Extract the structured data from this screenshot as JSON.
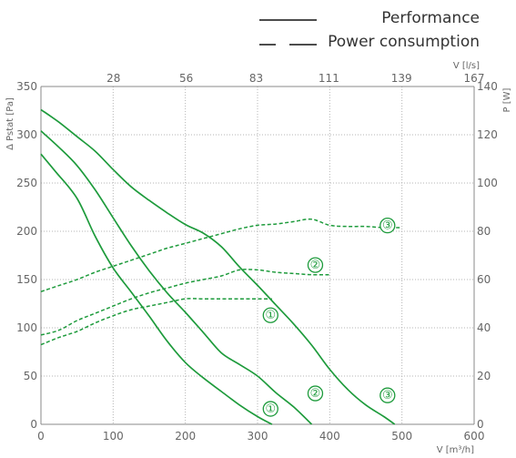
{
  "chart_data": {
    "type": "line",
    "legend": {
      "performance": "Performance",
      "power": "Power consumption"
    },
    "x_axis": {
      "label": "V [m³/h]",
      "range": [
        0,
        600
      ],
      "ticks": [
        0,
        100,
        200,
        300,
        400,
        500,
        600
      ]
    },
    "x2_axis": {
      "label": "V [l/s]",
      "range": [
        0,
        167
      ],
      "ticks": [
        28,
        56,
        83,
        111,
        139,
        167
      ]
    },
    "y_axis": {
      "label": "Δ Pstat [Pa]",
      "range": [
        0,
        350
      ],
      "ticks": [
        0,
        50,
        100,
        150,
        200,
        250,
        300,
        350
      ]
    },
    "y2_axis": {
      "label": "P [W]",
      "range": [
        0,
        140
      ],
      "ticks": [
        0,
        20,
        40,
        60,
        80,
        100,
        120,
        140
      ]
    },
    "grid": true,
    "series": [
      {
        "name": "①",
        "kind": "performance",
        "axis": "left",
        "points": [
          [
            0,
            280
          ],
          [
            20,
            262
          ],
          [
            50,
            234
          ],
          [
            75,
            195
          ],
          [
            100,
            162
          ],
          [
            125,
            137
          ],
          [
            150,
            112
          ],
          [
            175,
            86
          ],
          [
            200,
            64
          ],
          [
            225,
            48
          ],
          [
            250,
            34
          ],
          [
            275,
            20
          ],
          [
            300,
            8
          ],
          [
            320,
            0
          ]
        ]
      },
      {
        "name": "②",
        "kind": "performance",
        "axis": "left",
        "points": [
          [
            0,
            304
          ],
          [
            25,
            287
          ],
          [
            50,
            268
          ],
          [
            75,
            243
          ],
          [
            100,
            214
          ],
          [
            125,
            185
          ],
          [
            150,
            159
          ],
          [
            175,
            136
          ],
          [
            200,
            116
          ],
          [
            225,
            95
          ],
          [
            250,
            74
          ],
          [
            275,
            62
          ],
          [
            300,
            50
          ],
          [
            325,
            33
          ],
          [
            350,
            18
          ],
          [
            375,
            0
          ]
        ]
      },
      {
        "name": "③",
        "kind": "performance",
        "axis": "left",
        "points": [
          [
            0,
            326
          ],
          [
            25,
            313
          ],
          [
            50,
            298
          ],
          [
            75,
            283
          ],
          [
            100,
            264
          ],
          [
            125,
            246
          ],
          [
            150,
            232
          ],
          [
            175,
            219
          ],
          [
            200,
            207
          ],
          [
            225,
            198
          ],
          [
            250,
            184
          ],
          [
            275,
            163
          ],
          [
            300,
            144
          ],
          [
            325,
            124
          ],
          [
            350,
            104
          ],
          [
            375,
            82
          ],
          [
            400,
            57
          ],
          [
            425,
            36
          ],
          [
            450,
            20
          ],
          [
            475,
            8
          ],
          [
            490,
            0
          ]
        ]
      },
      {
        "name": "①",
        "kind": "power",
        "axis": "right",
        "points": [
          [
            0,
            33
          ],
          [
            25,
            36
          ],
          [
            50,
            38.5
          ],
          [
            75,
            42
          ],
          [
            100,
            45
          ],
          [
            125,
            47.5
          ],
          [
            150,
            49
          ],
          [
            175,
            50.5
          ],
          [
            200,
            52
          ],
          [
            225,
            52
          ],
          [
            250,
            52
          ],
          [
            275,
            52
          ],
          [
            300,
            52
          ],
          [
            320,
            52
          ]
        ]
      },
      {
        "name": "②",
        "kind": "power",
        "axis": "right",
        "points": [
          [
            0,
            37
          ],
          [
            25,
            39
          ],
          [
            50,
            43
          ],
          [
            75,
            46
          ],
          [
            100,
            49
          ],
          [
            125,
            52
          ],
          [
            150,
            54.5
          ],
          [
            175,
            56.5
          ],
          [
            200,
            58.5
          ],
          [
            225,
            60
          ],
          [
            250,
            61.5
          ],
          [
            275,
            64
          ],
          [
            300,
            64
          ],
          [
            325,
            63
          ],
          [
            350,
            62.5
          ],
          [
            375,
            62
          ],
          [
            400,
            62
          ]
        ]
      },
      {
        "name": "③",
        "kind": "power",
        "axis": "right",
        "points": [
          [
            0,
            55
          ],
          [
            25,
            57.5
          ],
          [
            50,
            60
          ],
          [
            75,
            63
          ],
          [
            100,
            65.5
          ],
          [
            125,
            68
          ],
          [
            150,
            70.5
          ],
          [
            175,
            73
          ],
          [
            200,
            75
          ],
          [
            225,
            77
          ],
          [
            250,
            79
          ],
          [
            275,
            81
          ],
          [
            300,
            82.5
          ],
          [
            325,
            83
          ],
          [
            350,
            84
          ],
          [
            375,
            85
          ],
          [
            400,
            82.5
          ],
          [
            425,
            82
          ],
          [
            450,
            82
          ],
          [
            475,
            81.5
          ],
          [
            500,
            81.5
          ]
        ]
      }
    ],
    "markers": [
      {
        "label": "①",
        "x": 318,
        "y": 113
      },
      {
        "label": "①",
        "x": 318,
        "y": 16
      },
      {
        "label": "②",
        "x": 380,
        "y": 165
      },
      {
        "label": "②",
        "x": 380,
        "y": 32
      },
      {
        "label": "③",
        "x": 480,
        "y": 206
      },
      {
        "label": "③",
        "x": 480,
        "y": 30
      }
    ]
  }
}
